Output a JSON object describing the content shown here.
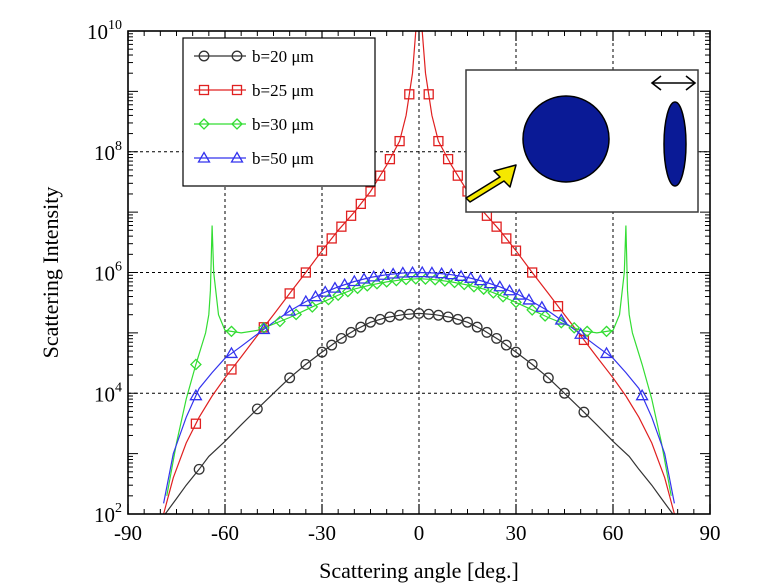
{
  "chart_data": {
    "type": "line",
    "xlabel": "Scattering angle [deg.]",
    "ylabel": "Scattering Intensity",
    "xlim": [
      -90,
      90
    ],
    "ylim": [
      100,
      10000000000
    ],
    "y_scale": "log",
    "x_ticks": [
      "-90",
      "-60",
      "-30",
      "0",
      "30",
      "60",
      "90"
    ],
    "y_ticks": [
      {
        "base": "10",
        "exp": "2"
      },
      {
        "base": "10",
        "exp": "4"
      },
      {
        "base": "10",
        "exp": "6"
      },
      {
        "base": "10",
        "exp": "8"
      },
      {
        "base": "10",
        "exp": "10"
      }
    ],
    "grid": true,
    "legend_position": "top-left",
    "series": [
      {
        "name": "b=20 μm",
        "color": "#333333",
        "marker": "circle",
        "x": [
          -78.5,
          -75,
          -72,
          -68,
          -65,
          -60,
          -55,
          -50,
          -45,
          -40,
          -35,
          -30,
          -25,
          -20,
          -15,
          -10,
          -5,
          0,
          5,
          10,
          15,
          20,
          25,
          30,
          35,
          40,
          45,
          50,
          55,
          60,
          65,
          68,
          72,
          75,
          78.5
        ],
        "y": [
          100,
          180,
          300,
          550,
          900,
          1600,
          3000,
          5500,
          10000,
          18000,
          30000,
          48000,
          75000,
          110000,
          150000,
          180000,
          200000,
          210000,
          200000,
          180000,
          150000,
          110000,
          75000,
          48000,
          30000,
          18000,
          10000,
          5500,
          3000,
          1600,
          900,
          550,
          300,
          180,
          100
        ]
      },
      {
        "name": "b=25 μm",
        "color": "#e02020",
        "marker": "square",
        "x": [
          -79,
          -76,
          -72,
          -68,
          -64,
          -60,
          -55,
          -50,
          -45,
          -40,
          -35,
          -30,
          -25,
          -20,
          -15,
          -10,
          -6,
          -4,
          -2,
          -1,
          0,
          1,
          2,
          4,
          6,
          10,
          15,
          20,
          25,
          30,
          35,
          40,
          45,
          50,
          55,
          60,
          64,
          68,
          72,
          76,
          79
        ],
        "y": [
          100,
          400,
          1500,
          4000,
          9000,
          18000,
          40000,
          90000,
          200000,
          450000,
          1000000,
          2300000,
          5000000,
          10000000,
          22000000,
          60000000,
          150000000,
          400000000,
          2000000000,
          10000000000,
          10000000000,
          10000000000,
          2000000000,
          400000000,
          150000000,
          60000000,
          22000000,
          10000000,
          5000000,
          2300000,
          1000000,
          450000,
          200000,
          90000,
          40000,
          18000,
          9000,
          4000,
          1500,
          400,
          100
        ]
      },
      {
        "name": "b=30 μm",
        "color": "#33dd33",
        "marker": "diamond",
        "x": [
          -78,
          -75,
          -72,
          -69,
          -66,
          -65,
          -64.5,
          -64,
          -63.5,
          -62,
          -60,
          -55,
          -50,
          -45,
          -40,
          -35,
          -30,
          -25,
          -20,
          -15,
          -10,
          -5,
          0,
          5,
          10,
          15,
          20,
          25,
          30,
          35,
          40,
          45,
          50,
          55,
          60,
          62,
          63.5,
          64,
          64.5,
          65,
          66,
          69,
          72,
          75,
          78
        ],
        "y": [
          200,
          1500,
          8000,
          30000,
          100000,
          200000,
          500000,
          6000000,
          1000000,
          200000,
          110000,
          100000,
          110000,
          140000,
          180000,
          240000,
          320000,
          420000,
          530000,
          620000,
          700000,
          760000,
          790000,
          760000,
          700000,
          620000,
          530000,
          420000,
          320000,
          240000,
          180000,
          140000,
          110000,
          100000,
          110000,
          200000,
          1000000,
          6000000,
          500000,
          200000,
          100000,
          30000,
          8000,
          1500,
          200
        ]
      },
      {
        "name": "b=50 μm",
        "color": "#3333ee",
        "marker": "triangle",
        "x": [
          -79,
          -76,
          -72,
          -68,
          -64,
          -60,
          -55,
          -50,
          -45,
          -40,
          -35,
          -30,
          -25,
          -20,
          -15,
          -10,
          -5,
          0,
          5,
          10,
          15,
          20,
          25,
          30,
          35,
          40,
          45,
          50,
          55,
          60,
          64,
          68,
          72,
          76,
          79
        ],
        "y": [
          150,
          1000,
          4000,
          12000,
          22000,
          38000,
          60000,
          95000,
          150000,
          230000,
          330000,
          450000,
          580000,
          710000,
          830000,
          920000,
          980000,
          1000000,
          980000,
          920000,
          830000,
          710000,
          580000,
          450000,
          330000,
          230000,
          150000,
          95000,
          60000,
          38000,
          22000,
          12000,
          4000,
          1000,
          150
        ]
      }
    ],
    "markers": [
      {
        "series": 0,
        "x": [
          -68,
          -50,
          -40,
          -35,
          -30,
          -27,
          -24,
          -21,
          -18,
          -15,
          -12,
          -9,
          -6,
          -3,
          0,
          3,
          6,
          9,
          12,
          15,
          18,
          21,
          24,
          27,
          30,
          35,
          40,
          45,
          51
        ]
      },
      {
        "series": 1,
        "x": [
          -69,
          -58,
          -48,
          -40,
          -35,
          -30,
          -27,
          -24,
          -21,
          -18,
          -15,
          -12,
          -9,
          -6,
          -3,
          3,
          6,
          9,
          12,
          15,
          18,
          21,
          24,
          27,
          30,
          35,
          43,
          51
        ]
      },
      {
        "series": 2,
        "x": [
          -69,
          -58,
          -48,
          -43,
          -38,
          -33,
          -28,
          -25,
          -22,
          -19,
          -16,
          -13,
          -10,
          -7,
          -4,
          -1,
          2,
          5,
          8,
          11,
          14,
          17,
          20,
          23,
          26,
          30,
          35,
          39,
          44,
          48,
          52,
          58
        ]
      },
      {
        "series": 3,
        "x": [
          -69,
          -58,
          -48,
          -40,
          -35,
          -32,
          -29,
          -26,
          -23,
          -20,
          -17,
          -14,
          -11,
          -8,
          -5,
          -2,
          1,
          4,
          7,
          10,
          13,
          16,
          19,
          22,
          25,
          28,
          31,
          34,
          38,
          44,
          50,
          58,
          69
        ]
      }
    ]
  }
}
